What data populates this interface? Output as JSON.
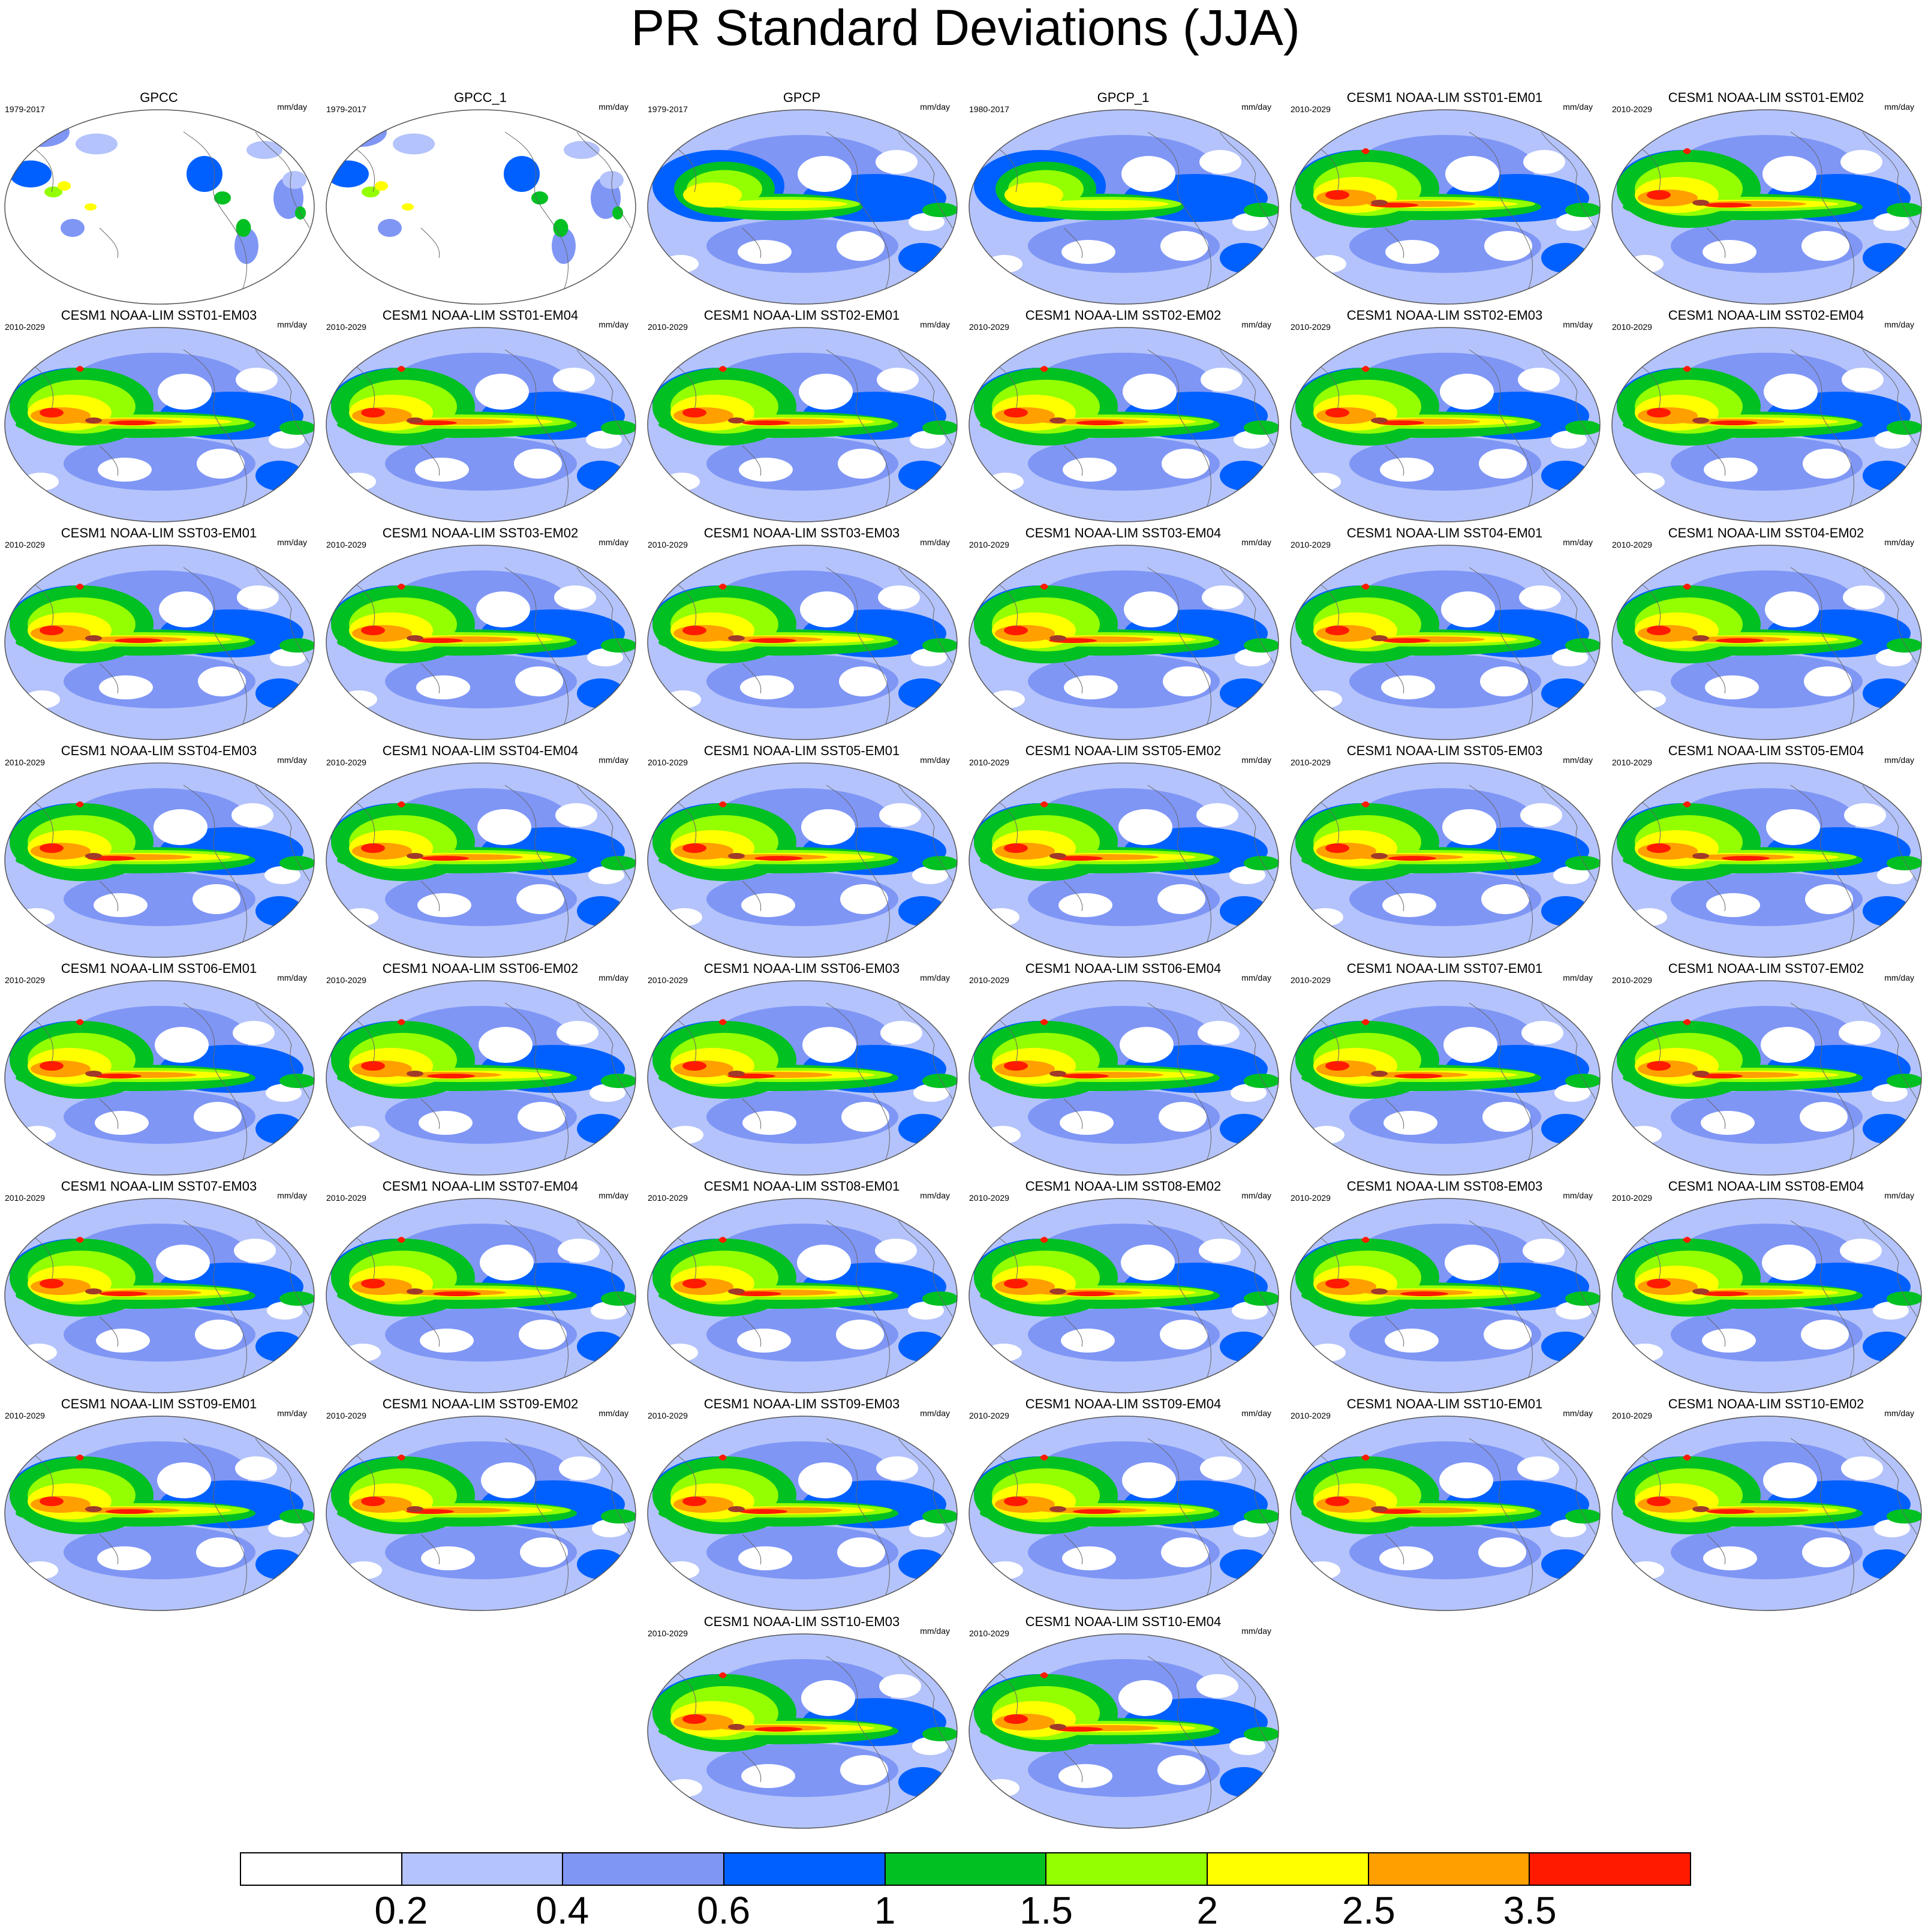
{
  "title": "PR Standard Deviations (JJA)",
  "units_label": "mm/day",
  "panels": [
    {
      "name": "GPCC",
      "period": "1979-2017",
      "kind": "land"
    },
    {
      "name": "GPCC_1",
      "period": "1979-2017",
      "kind": "land"
    },
    {
      "name": "GPCP",
      "period": "1979-2017",
      "kind": "obs"
    },
    {
      "name": "GPCP_1",
      "period": "1980-2017",
      "kind": "obs"
    },
    {
      "name": "CESM1 NOAA-LIM SST01-EM01",
      "period": "2010-2029",
      "kind": "model"
    },
    {
      "name": "CESM1 NOAA-LIM SST01-EM02",
      "period": "2010-2029",
      "kind": "model"
    },
    {
      "name": "CESM1 NOAA-LIM SST01-EM03",
      "period": "2010-2029",
      "kind": "model"
    },
    {
      "name": "CESM1 NOAA-LIM SST01-EM04",
      "period": "2010-2029",
      "kind": "model"
    },
    {
      "name": "CESM1 NOAA-LIM SST02-EM01",
      "period": "2010-2029",
      "kind": "model"
    },
    {
      "name": "CESM1 NOAA-LIM SST02-EM02",
      "period": "2010-2029",
      "kind": "model"
    },
    {
      "name": "CESM1 NOAA-LIM SST02-EM03",
      "period": "2010-2029",
      "kind": "model"
    },
    {
      "name": "CESM1 NOAA-LIM SST02-EM04",
      "period": "2010-2029",
      "kind": "model"
    },
    {
      "name": "CESM1 NOAA-LIM SST03-EM01",
      "period": "2010-2029",
      "kind": "model"
    },
    {
      "name": "CESM1 NOAA-LIM SST03-EM02",
      "period": "2010-2029",
      "kind": "model"
    },
    {
      "name": "CESM1 NOAA-LIM SST03-EM03",
      "period": "2010-2029",
      "kind": "model"
    },
    {
      "name": "CESM1 NOAA-LIM SST03-EM04",
      "period": "2010-2029",
      "kind": "model"
    },
    {
      "name": "CESM1 NOAA-LIM SST04-EM01",
      "period": "2010-2029",
      "kind": "model"
    },
    {
      "name": "CESM1 NOAA-LIM SST04-EM02",
      "period": "2010-2029",
      "kind": "model"
    },
    {
      "name": "CESM1 NOAA-LIM SST04-EM03",
      "period": "2010-2029",
      "kind": "model"
    },
    {
      "name": "CESM1 NOAA-LIM SST04-EM04",
      "period": "2010-2029",
      "kind": "model"
    },
    {
      "name": "CESM1 NOAA-LIM SST05-EM01",
      "period": "2010-2029",
      "kind": "model"
    },
    {
      "name": "CESM1 NOAA-LIM SST05-EM02",
      "period": "2010-2029",
      "kind": "model"
    },
    {
      "name": "CESM1 NOAA-LIM SST05-EM03",
      "period": "2010-2029",
      "kind": "model"
    },
    {
      "name": "CESM1 NOAA-LIM SST05-EM04",
      "period": "2010-2029",
      "kind": "model"
    },
    {
      "name": "CESM1 NOAA-LIM SST06-EM01",
      "period": "2010-2029",
      "kind": "model"
    },
    {
      "name": "CESM1 NOAA-LIM SST06-EM02",
      "period": "2010-2029",
      "kind": "model"
    },
    {
      "name": "CESM1 NOAA-LIM SST06-EM03",
      "period": "2010-2029",
      "kind": "model"
    },
    {
      "name": "CESM1 NOAA-LIM SST06-EM04",
      "period": "2010-2029",
      "kind": "model"
    },
    {
      "name": "CESM1 NOAA-LIM SST07-EM01",
      "period": "2010-2029",
      "kind": "model"
    },
    {
      "name": "CESM1 NOAA-LIM SST07-EM02",
      "period": "2010-2029",
      "kind": "model"
    },
    {
      "name": "CESM1 NOAA-LIM SST07-EM03",
      "period": "2010-2029",
      "kind": "model"
    },
    {
      "name": "CESM1 NOAA-LIM SST07-EM04",
      "period": "2010-2029",
      "kind": "model"
    },
    {
      "name": "CESM1 NOAA-LIM SST08-EM01",
      "period": "2010-2029",
      "kind": "model"
    },
    {
      "name": "CESM1 NOAA-LIM SST08-EM02",
      "period": "2010-2029",
      "kind": "model"
    },
    {
      "name": "CESM1 NOAA-LIM SST08-EM03",
      "period": "2010-2029",
      "kind": "model"
    },
    {
      "name": "CESM1 NOAA-LIM SST08-EM04",
      "period": "2010-2029",
      "kind": "model"
    },
    {
      "name": "CESM1 NOAA-LIM SST09-EM01",
      "period": "2010-2029",
      "kind": "model"
    },
    {
      "name": "CESM1 NOAA-LIM SST09-EM02",
      "period": "2010-2029",
      "kind": "model"
    },
    {
      "name": "CESM1 NOAA-LIM SST09-EM03",
      "period": "2010-2029",
      "kind": "model"
    },
    {
      "name": "CESM1 NOAA-LIM SST09-EM04",
      "period": "2010-2029",
      "kind": "model"
    },
    {
      "name": "CESM1 NOAA-LIM SST10-EM01",
      "period": "2010-2029",
      "kind": "model"
    },
    {
      "name": "CESM1 NOAA-LIM SST10-EM02",
      "period": "2010-2029",
      "kind": "model"
    },
    {
      "name": "CESM1 NOAA-LIM SST10-EM03",
      "period": "2010-2029",
      "kind": "model"
    },
    {
      "name": "CESM1 NOAA-LIM SST10-EM04",
      "period": "2010-2029",
      "kind": "model"
    }
  ],
  "colorbar": {
    "colors": [
      "#ffffff",
      "#b4c3fb",
      "#7f96f5",
      "#0060ff",
      "#00c022",
      "#94ff00",
      "#ffff00",
      "#ff9f00",
      "#ff1a00"
    ],
    "labels": [
      "0.2",
      "0.4",
      "0.6",
      "1",
      "1.5",
      "2",
      "2.5",
      "3.5"
    ]
  }
}
